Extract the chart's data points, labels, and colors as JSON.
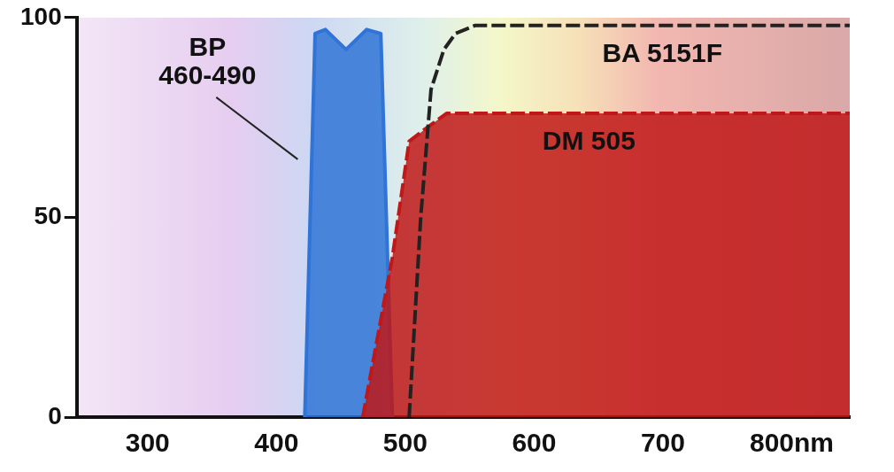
{
  "chart_data": {
    "type": "line",
    "xlim": [
      245,
      845
    ],
    "xticks": [
      300,
      400,
      500,
      600,
      700,
      {
        "value": 800,
        "label": "800nm"
      }
    ],
    "ylim": [
      0,
      100
    ],
    "yticks": [
      0,
      50,
      100
    ],
    "marker": "none",
    "series": [
      {
        "name": "BP\n460-490",
        "type": "area",
        "color": "#2f74d6",
        "x": [
          422,
          430,
          438,
          454,
          470,
          481,
          490
        ],
        "values": [
          0,
          96,
          97,
          92,
          97,
          96,
          0
        ]
      },
      {
        "name": "DM 505",
        "type": "area",
        "color": "#c01818",
        "line_style": "dashed",
        "x": [
          467,
          490,
          503,
          515,
          532,
          550,
          845
        ],
        "values": [
          0,
          40,
          69,
          72,
          76,
          76,
          76
        ]
      },
      {
        "name": "BA 5151F",
        "color": "#222222",
        "line_style": "dashed",
        "x": [
          503,
          512,
          520,
          530,
          539,
          554,
          845
        ],
        "values": [
          0,
          50,
          82,
          92,
          96,
          98,
          98
        ]
      }
    ]
  }
}
